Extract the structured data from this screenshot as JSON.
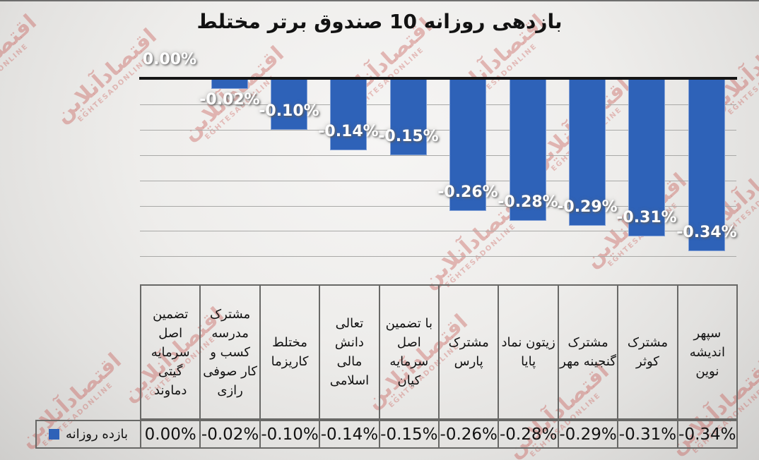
{
  "title": "بازدهی روزانه 10 صندوق برتر مختلط",
  "watermark": {
    "fa": "اقتصادآنلاین",
    "en": "EGHTESADONLINE"
  },
  "legend": {
    "series_label": "بازده روزانه",
    "swatch_color": "#2E62B8"
  },
  "chart_data": {
    "type": "bar",
    "title": "بازدهی روزانه 10 صندوق برتر مختلط",
    "categories": [
      "تضمین اصل سرمایه گیتی دماوند",
      "مشترک مدرسه کسب و کار صوفی رازی",
      "مختلط کاریزما",
      "تعالی دانش مالی اسلامی",
      "با تضمین اصل سرمایه کیان",
      "مشترک پارس",
      "زیتون نماد پایا",
      "مشترک گنجینه مهر",
      "مشترک کوثر",
      "سپهر اندیشه نوین"
    ],
    "values": [
      0.0,
      -0.02,
      -0.1,
      -0.14,
      -0.15,
      -0.26,
      -0.28,
      -0.29,
      -0.31,
      -0.34
    ],
    "values_display": [
      "0.00%",
      "-0.02%",
      "-0.10%",
      "-0.14%",
      "-0.15%",
      "-0.26%",
      "-0.28%",
      "-0.29%",
      "-0.31%",
      "-0.34%"
    ],
    "unit": "%",
    "ylim": [
      -0.35,
      0
    ],
    "gridline_step": 0.05,
    "grid": true,
    "bar_color": "#2E62B8",
    "label_color": "#ffffff",
    "legend_entry": "بازده روزانه",
    "legend_position": "bottom-left-table"
  }
}
